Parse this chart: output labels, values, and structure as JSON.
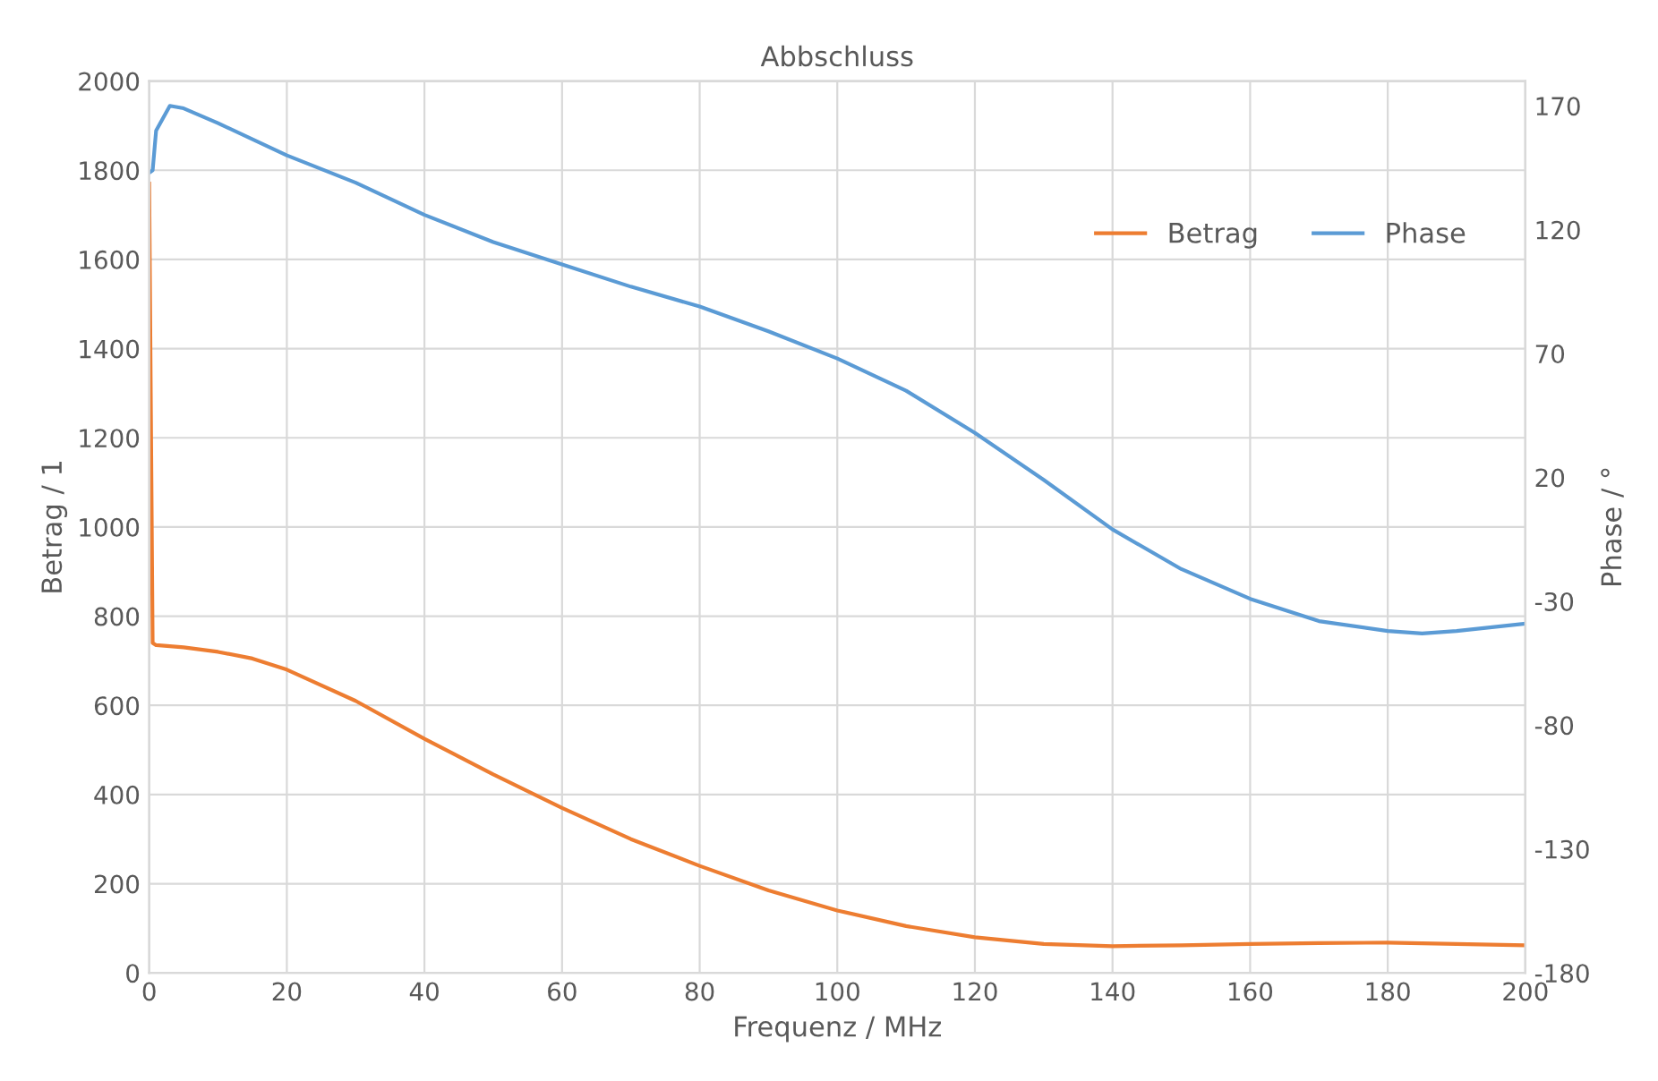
{
  "chart_data": {
    "type": "line",
    "title": "Abbschluss",
    "xlabel": "Frequenz / MHz",
    "ylabel": "Betrag / 1",
    "y2label": "Phase / °",
    "xlim": [
      0,
      200
    ],
    "xticks": [
      0,
      20,
      40,
      60,
      80,
      100,
      120,
      140,
      160,
      180,
      200
    ],
    "ylim": [
      0,
      2000
    ],
    "yticks": [
      0,
      200,
      400,
      600,
      800,
      1000,
      1200,
      1400,
      1600,
      1800,
      2000
    ],
    "y2lim": [
      -180,
      180
    ],
    "y2ticks": [
      -180,
      -130,
      -80,
      -30,
      20,
      70,
      120,
      170
    ],
    "grid": true,
    "legend": "top right",
    "marker": "none",
    "line_style": "solid",
    "series": [
      {
        "name": "Betrag",
        "color": "#ed7d31",
        "x": [
          0,
          0.5,
          1,
          5,
          10,
          15,
          20,
          30,
          40,
          50,
          60,
          70,
          80,
          90,
          100,
          110,
          120,
          130,
          140,
          150,
          160,
          170,
          180,
          190,
          200
        ],
        "values": [
          1770,
          740,
          735,
          730,
          720,
          705,
          680,
          610,
          525,
          445,
          370,
          300,
          240,
          185,
          140,
          105,
          80,
          65,
          60,
          62,
          65,
          67,
          68,
          65,
          62
        ]
      },
      {
        "name": "Phase",
        "color": "#5b9bd5",
        "axis": "y2",
        "x": [
          0,
          0.5,
          1,
          3,
          5,
          10,
          20,
          30,
          40,
          50,
          60,
          70,
          80,
          90,
          100,
          110,
          120,
          130,
          140,
          150,
          160,
          170,
          180,
          185,
          190,
          200
        ],
        "values": [
          143,
          144,
          160,
          170,
          169,
          163,
          150,
          139,
          126,
          115,
          106,
          97,
          89,
          79,
          68,
          55,
          38,
          19,
          -1,
          -17,
          -29,
          -38,
          -42,
          -43,
          -42,
          -39
        ]
      }
    ]
  }
}
